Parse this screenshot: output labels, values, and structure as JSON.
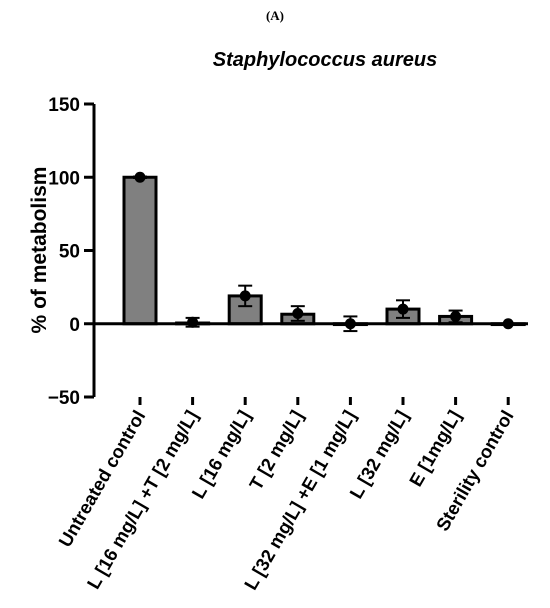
{
  "panel_label": "(A)",
  "chart_data": {
    "type": "bar",
    "title": "Staphylococcus aureus",
    "xlabel": "",
    "ylabel": "% of metabolism",
    "ylim": [
      -50,
      150
    ],
    "yticks": [
      -50,
      0,
      50,
      100,
      150
    ],
    "categories": [
      "Untreated control",
      "L [16 mg/L] +T [2 mg/L]",
      "L [16 mg/L]",
      "T [2 mg/L]",
      "L [32 mg/L] +E [1 mg/L]",
      "L [32 mg/L]",
      "E [1mg/L]",
      "Sterility control"
    ],
    "values": [
      100,
      0.5,
      19,
      6.5,
      0,
      10,
      5,
      0
    ],
    "points": [
      100,
      1,
      19,
      7,
      0,
      10,
      5,
      0
    ],
    "error": [
      0.5,
      3,
      7,
      5,
      5,
      6,
      4,
      0
    ],
    "bar_color": "#808080",
    "grid": false,
    "legend": "none"
  }
}
